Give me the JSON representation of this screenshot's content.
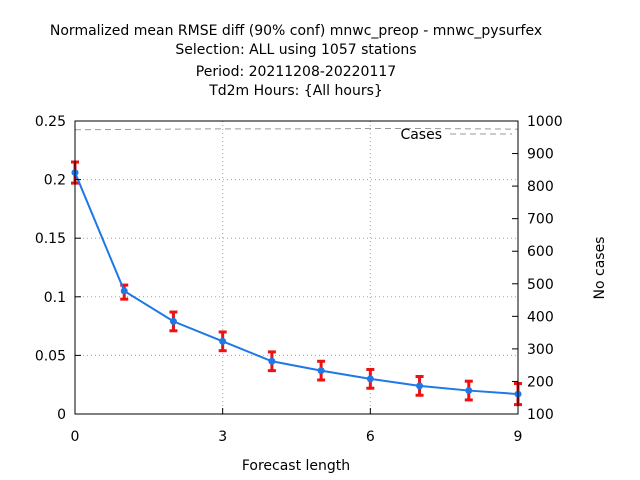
{
  "chart_data": {
    "type": "line",
    "title_lines": [
      "Normalized mean RMSE diff (90% conf) mnwc_preop - mnwc_pysurfex",
      "Selection: ALL using  1057 stations",
      "Period: 20211208-20220117",
      "Td2m   Hours: {All hours}"
    ],
    "xlabel": "Forecast length",
    "ylabel": "",
    "y2label": "No cases",
    "xlim": [
      0,
      9
    ],
    "ylim": [
      0,
      0.25
    ],
    "y2lim": [
      100,
      1000
    ],
    "x_ticks": [
      0,
      3,
      6,
      9
    ],
    "x_tick_labels": [
      "0",
      "3",
      "6",
      "9"
    ],
    "y_ticks": [
      0,
      0.05,
      0.1,
      0.15,
      0.2,
      0.25
    ],
    "y_tick_labels": [
      "0",
      "0.05",
      "0.1",
      "0.15",
      "0.2",
      "0.25"
    ],
    "y2_ticks": [
      100,
      200,
      300,
      400,
      500,
      600,
      700,
      800,
      900,
      1000
    ],
    "y2_tick_labels": [
      "100",
      "200",
      "300",
      "400",
      "500",
      "600",
      "700",
      "800",
      "900",
      "1000"
    ],
    "grid": true,
    "legend_position": "top-right",
    "series": [
      {
        "axis": "left",
        "color": "#1e78e6",
        "x": [
          0,
          1,
          2,
          3,
          4,
          5,
          6,
          7,
          8,
          9
        ],
        "values": [
          0.206,
          0.105,
          0.079,
          0.062,
          0.045,
          0.037,
          0.03,
          0.024,
          0.02,
          0.017
        ],
        "err_low": [
          0.197,
          0.098,
          0.071,
          0.054,
          0.037,
          0.029,
          0.022,
          0.016,
          0.012,
          0.008
        ],
        "err_high": [
          0.215,
          0.11,
          0.087,
          0.07,
          0.053,
          0.045,
          0.038,
          0.032,
          0.028,
          0.026
        ],
        "err_color": "#ee1111"
      },
      {
        "name": "Cases",
        "axis": "right",
        "color": "#999999",
        "dashed": true,
        "x": [
          0,
          1,
          2,
          3,
          4,
          5,
          6,
          7,
          8,
          9
        ],
        "values": [
          973,
          974,
          975,
          976,
          976,
          976,
          977,
          977,
          976,
          975
        ]
      }
    ]
  }
}
